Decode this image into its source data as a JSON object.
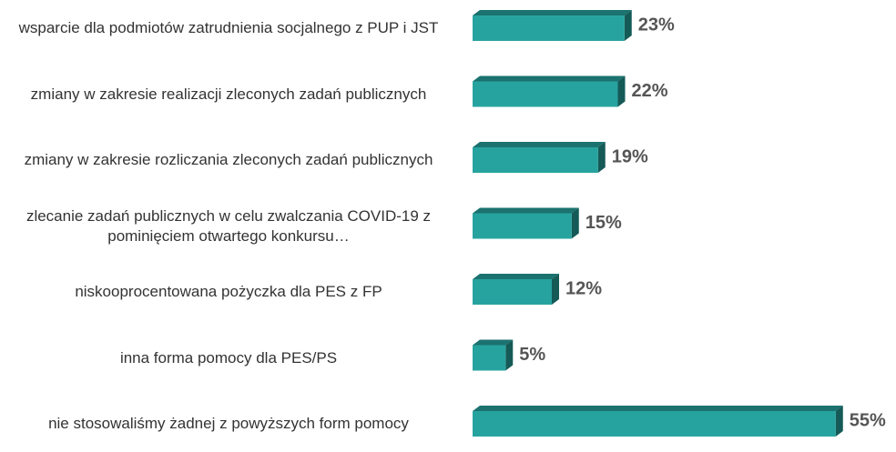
{
  "chart_data": {
    "type": "bar",
    "orientation": "horizontal",
    "categories": [
      "wsparcie dla podmiotów zatrudnienia socjalnego z PUP i JST",
      "zmiany w zakresie realizacji zleconych zadań publicznych",
      "zmiany w zakresie rozliczania zleconych zadań publicznych",
      "zlecanie zadań publicznych w celu zwalczania COVID-19 z pominięciem otwartego konkursu…",
      "niskooprocentowana pożyczka dla PES z FP",
      "inna forma pomocy dla PES/PS",
      "nie stosowaliśmy żadnej z powyższych form pomocy"
    ],
    "values": [
      23,
      22,
      19,
      15,
      12,
      5,
      55
    ],
    "value_labels": [
      "23%",
      "22%",
      "19%",
      "15%",
      "12%",
      "5%",
      "55%"
    ],
    "color": "#27a39f"
  }
}
